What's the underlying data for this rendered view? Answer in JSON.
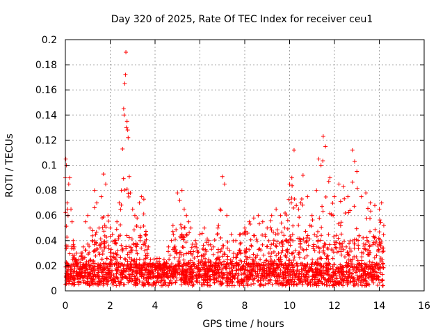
{
  "chart_data": {
    "type": "scatter",
    "title": "Day 320 of 2025, Rate Of TEC Index for receiver ceu1",
    "xlabel": "GPS time / hours",
    "ylabel": "ROTI / TECUs",
    "xlim": [
      0,
      16
    ],
    "ylim": [
      0,
      0.2
    ],
    "xticks": [
      0,
      2,
      4,
      6,
      8,
      10,
      12,
      14,
      16
    ],
    "yticks": [
      0,
      0.02,
      0.04,
      0.06,
      0.08,
      0.1,
      0.12,
      0.14,
      0.16,
      0.18,
      0.2
    ],
    "ytick_labels": [
      "0",
      "0.02",
      "0.04",
      "0.06",
      "0.08",
      "0.1",
      "0.12",
      "0.14",
      "0.16",
      "0.18",
      "0.2"
    ],
    "grid": true,
    "marker": "+",
    "color": "#ff0000",
    "series": [
      {
        "name": "ROTI",
        "x": [
          0.0,
          0.02,
          0.05,
          0.08,
          0.1,
          0.12,
          0.15,
          0.2,
          0.25,
          0.3,
          0.35,
          0.4,
          0.5,
          0.6,
          0.7,
          0.8,
          0.9,
          1.0,
          1.1,
          1.2,
          1.3,
          1.4,
          1.5,
          1.6,
          1.7,
          1.8,
          1.9,
          2.0,
          2.1,
          2.2,
          2.3,
          2.4,
          2.5,
          2.55,
          2.6,
          2.62,
          2.65,
          2.68,
          2.7,
          2.72,
          2.75,
          2.78,
          2.8,
          2.85,
          2.9,
          3.0,
          3.1,
          3.2,
          3.3,
          3.4,
          3.5,
          3.6,
          3.7,
          3.8,
          3.9,
          4.0,
          4.2,
          4.4,
          4.6,
          4.8,
          5.0,
          5.1,
          5.2,
          5.3,
          5.4,
          5.5,
          5.6,
          5.8,
          6.0,
          6.2,
          6.4,
          6.6,
          6.8,
          6.9,
          7.0,
          7.1,
          7.2,
          7.4,
          7.6,
          7.8,
          8.0,
          8.2,
          8.4,
          8.6,
          8.8,
          9.0,
          9.2,
          9.4,
          9.6,
          9.8,
          10.0,
          10.1,
          10.2,
          10.3,
          10.4,
          10.5,
          10.6,
          10.8,
          11.0,
          11.2,
          11.3,
          11.4,
          11.5,
          11.6,
          11.8,
          12.0,
          12.2,
          12.4,
          12.6,
          12.8,
          12.9,
          13.0,
          13.2,
          13.4,
          13.6,
          13.8,
          14.0,
          14.1,
          14.2
        ],
        "y": [
          0.09,
          0.105,
          0.1,
          0.07,
          0.065,
          0.06,
          0.085,
          0.09,
          0.065,
          0.055,
          0.04,
          0.035,
          0.03,
          0.025,
          0.03,
          0.035,
          0.055,
          0.06,
          0.05,
          0.04,
          0.08,
          0.07,
          0.05,
          0.075,
          0.093,
          0.085,
          0.06,
          0.05,
          0.045,
          0.04,
          0.055,
          0.07,
          0.08,
          0.113,
          0.145,
          0.14,
          0.165,
          0.172,
          0.19,
          0.13,
          0.135,
          0.128,
          0.122,
          0.091,
          0.078,
          0.065,
          0.06,
          0.058,
          0.07,
          0.075,
          0.073,
          0.045,
          0.035,
          0.025,
          0.02,
          0.02,
          0.02,
          0.025,
          0.035,
          0.052,
          0.078,
          0.072,
          0.08,
          0.065,
          0.06,
          0.055,
          0.05,
          0.04,
          0.045,
          0.05,
          0.04,
          0.035,
          0.05,
          0.065,
          0.091,
          0.085,
          0.06,
          0.045,
          0.04,
          0.045,
          0.05,
          0.055,
          0.058,
          0.06,
          0.055,
          0.05,
          0.06,
          0.065,
          0.06,
          0.062,
          0.085,
          0.09,
          0.112,
          0.068,
          0.065,
          0.07,
          0.092,
          0.075,
          0.06,
          0.08,
          0.105,
          0.1,
          0.123,
          0.115,
          0.09,
          0.075,
          0.085,
          0.083,
          0.075,
          0.112,
          0.103,
          0.095,
          0.075,
          0.078,
          0.07,
          0.068,
          0.065,
          0.07,
          0.052
        ]
      }
    ]
  }
}
